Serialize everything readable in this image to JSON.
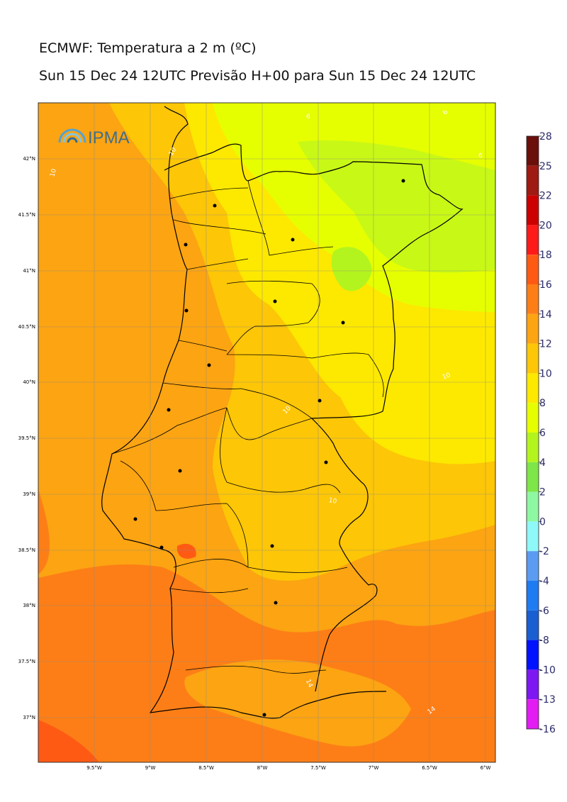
{
  "title": "ECMWF: Temperatura a 2 m (ºC)",
  "subtitle": "Sun 15 Dec 24 12UTC Previsão H+00 para Sun 15 Dec 24 12UTC",
  "logo_text": "IPMA",
  "x_ticks": [
    "9.5°W",
    "9°W",
    "8.5°W",
    "8°W",
    "7.5°W",
    "7°W",
    "6.5°W",
    "6°W"
  ],
  "y_ticks": [
    "42°N",
    "41.5°N",
    "41°N",
    "40.5°N",
    "40°N",
    "39.5°N",
    "39°N",
    "38.5°N",
    "38°N",
    "37.5°N",
    "37°N"
  ],
  "contour_labels": [
    "6",
    "6",
    "6",
    "10",
    "10",
    "10",
    "10",
    "10",
    "10",
    "14",
    "14"
  ],
  "colorbar": {
    "labels": [
      "28",
      "25",
      "22",
      "20",
      "18",
      "16",
      "14",
      "12",
      "10",
      "8",
      "6",
      "4",
      "2",
      "0",
      "-2",
      "-4",
      "-6",
      "-8",
      "-10",
      "-13",
      "-16"
    ],
    "colors": [
      "#6b0f0a",
      "#9e1a12",
      "#cc0000",
      "#ff1a1a",
      "#ff5a14",
      "#fd7e17",
      "#fca412",
      "#fdc607",
      "#fde800",
      "#e6ff00",
      "#b4f41e",
      "#7ee648",
      "#8ef7a2",
      "#8ff8f8",
      "#5b9cf2",
      "#1f7bf2",
      "#1a5fd1",
      "#0012ff",
      "#7d18f2",
      "#e21cf2"
    ]
  },
  "chart_data": {
    "type": "heatmap",
    "title": "ECMWF: Temperatura a 2 m (ºC)",
    "subtitle": "Sun 15 Dec 24 12UTC Previsão H+00 para Sun 15 Dec 24 12UTC",
    "variable": "Temperatura a 2 m",
    "unit": "ºC",
    "xlim": [
      -10.0,
      -5.9
    ],
    "ylim": [
      36.6,
      42.5
    ],
    "scale_levels": [
      -16,
      -13,
      -10,
      -8,
      -6,
      -4,
      -2,
      0,
      2,
      4,
      6,
      8,
      10,
      12,
      14,
      16,
      18,
      20,
      22,
      25,
      28
    ],
    "contour_values": [
      6,
      10,
      14
    ],
    "grid": true,
    "legend": "right"
  }
}
